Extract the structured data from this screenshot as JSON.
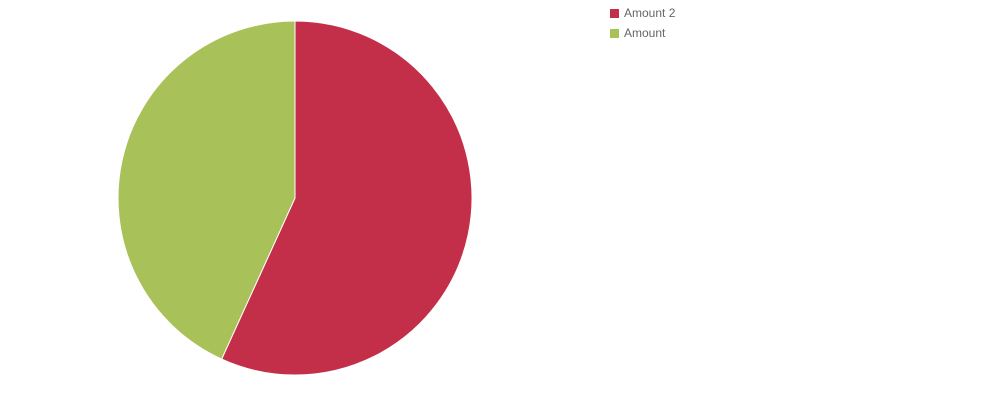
{
  "chart_data": {
    "type": "pie",
    "series": [
      {
        "name": "Amount 2",
        "value": 56.8,
        "color": "#c32f48"
      },
      {
        "name": "Amount",
        "value": 43.2,
        "color": "#a8c158"
      }
    ],
    "title": "",
    "legend_position": "top-right"
  }
}
